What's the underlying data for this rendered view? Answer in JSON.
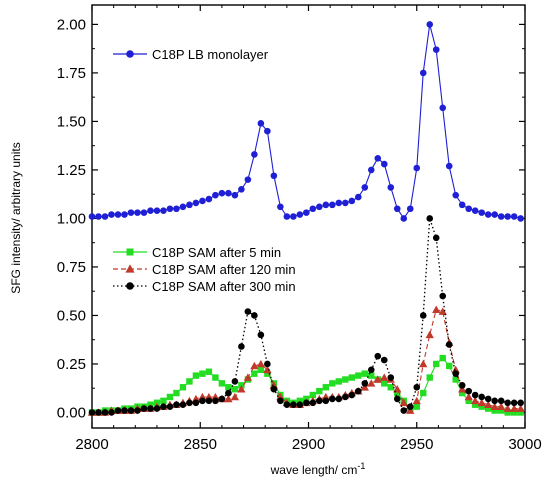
{
  "chart_data": {
    "type": "line",
    "title": "",
    "xlabel": "wave length/ cm",
    "xlabel_sup": "-1",
    "ylabel": "SFG intensity/ arbitrary units",
    "xlim": [
      2800,
      3000
    ],
    "ylim": [
      -0.08,
      2.1
    ],
    "xticks": [
      2800,
      2850,
      2900,
      2950,
      3000
    ],
    "yticks": [
      0.0,
      0.25,
      0.5,
      0.75,
      1.0,
      1.25,
      1.5,
      1.75,
      2.0
    ],
    "xtick_labels": [
      "2800",
      "2850",
      "2900",
      "2950",
      "3000"
    ],
    "ytick_labels": [
      "0.00",
      "0.25",
      "0.50",
      "0.75",
      "1.00",
      "1.25",
      "1.50",
      "1.75",
      "2.00"
    ],
    "grid": false,
    "series": [
      {
        "name": "C18P LB monolayer",
        "color": "#1f1fd6",
        "marker": "circle",
        "line_style": "solid",
        "legend_group": "top",
        "x": [
          2800,
          2803,
          2806,
          2809,
          2812,
          2815,
          2818,
          2821,
          2824,
          2827,
          2830,
          2833,
          2836,
          2839,
          2842,
          2845,
          2848,
          2851,
          2854,
          2857,
          2860,
          2863,
          2866,
          2869,
          2872,
          2875,
          2878,
          2881,
          2884,
          2887,
          2890,
          2893,
          2896,
          2899,
          2902,
          2905,
          2908,
          2911,
          2914,
          2917,
          2920,
          2923,
          2926,
          2929,
          2932,
          2935,
          2938,
          2941,
          2944,
          2947,
          2950,
          2953,
          2956,
          2959,
          2962,
          2965,
          2968,
          2971,
          2974,
          2977,
          2980,
          2983,
          2986,
          2989,
          2992,
          2995,
          2998
        ],
        "y": [
          1.01,
          1.01,
          1.01,
          1.02,
          1.02,
          1.02,
          1.03,
          1.03,
          1.03,
          1.04,
          1.04,
          1.04,
          1.05,
          1.05,
          1.06,
          1.07,
          1.08,
          1.09,
          1.1,
          1.12,
          1.13,
          1.13,
          1.12,
          1.15,
          1.2,
          1.33,
          1.49,
          1.45,
          1.22,
          1.06,
          1.01,
          1.01,
          1.02,
          1.03,
          1.05,
          1.06,
          1.07,
          1.07,
          1.08,
          1.08,
          1.09,
          1.11,
          1.16,
          1.25,
          1.31,
          1.28,
          1.16,
          1.05,
          1.0,
          1.05,
          1.26,
          1.75,
          2.0,
          1.87,
          1.57,
          1.27,
          1.12,
          1.07,
          1.05,
          1.04,
          1.03,
          1.02,
          1.02,
          1.01,
          1.01,
          1.01,
          1.0
        ]
      },
      {
        "name": "C18P SAM after 5 min",
        "color": "#22dd22",
        "marker": "square",
        "line_style": "solid",
        "legend_group": "bottom",
        "x": [
          2800,
          2803,
          2806,
          2809,
          2812,
          2815,
          2818,
          2821,
          2824,
          2827,
          2830,
          2833,
          2836,
          2839,
          2842,
          2845,
          2848,
          2851,
          2854,
          2857,
          2860,
          2863,
          2866,
          2869,
          2872,
          2875,
          2878,
          2881,
          2884,
          2887,
          2890,
          2893,
          2896,
          2899,
          2902,
          2905,
          2908,
          2911,
          2914,
          2917,
          2920,
          2923,
          2926,
          2929,
          2932,
          2935,
          2938,
          2941,
          2944,
          2947,
          2950,
          2953,
          2956,
          2959,
          2962,
          2965,
          2968,
          2971,
          2974,
          2977,
          2980,
          2983,
          2986,
          2989,
          2992,
          2995,
          2998
        ],
        "y": [
          0.0,
          0.0,
          0.01,
          0.01,
          0.01,
          0.02,
          0.02,
          0.03,
          0.03,
          0.04,
          0.05,
          0.06,
          0.08,
          0.1,
          0.13,
          0.16,
          0.19,
          0.2,
          0.21,
          0.18,
          0.15,
          0.13,
          0.12,
          0.14,
          0.17,
          0.2,
          0.22,
          0.2,
          0.15,
          0.09,
          0.06,
          0.05,
          0.06,
          0.07,
          0.09,
          0.11,
          0.13,
          0.15,
          0.16,
          0.17,
          0.18,
          0.19,
          0.2,
          0.19,
          0.17,
          0.15,
          0.13,
          0.1,
          0.06,
          0.02,
          0.03,
          0.1,
          0.18,
          0.25,
          0.28,
          0.24,
          0.17,
          0.1,
          0.06,
          0.04,
          0.03,
          0.02,
          0.01,
          0.01,
          0.0,
          0.0,
          0.0
        ]
      },
      {
        "name": "C18P SAM after 120 min",
        "color": "#c0392b",
        "marker": "triangle",
        "line_style": "dashed",
        "legend_group": "bottom",
        "x": [
          2800,
          2803,
          2806,
          2809,
          2812,
          2815,
          2818,
          2821,
          2824,
          2827,
          2830,
          2833,
          2836,
          2839,
          2842,
          2845,
          2848,
          2851,
          2854,
          2857,
          2860,
          2863,
          2866,
          2869,
          2872,
          2875,
          2878,
          2881,
          2884,
          2887,
          2890,
          2893,
          2896,
          2899,
          2902,
          2905,
          2908,
          2911,
          2914,
          2917,
          2920,
          2923,
          2926,
          2929,
          2932,
          2935,
          2938,
          2941,
          2944,
          2947,
          2950,
          2953,
          2956,
          2959,
          2962,
          2965,
          2968,
          2971,
          2974,
          2977,
          2980,
          2983,
          2986,
          2989,
          2992,
          2995,
          2998
        ],
        "y": [
          0.0,
          0.0,
          0.0,
          0.01,
          0.01,
          0.01,
          0.01,
          0.02,
          0.02,
          0.02,
          0.03,
          0.03,
          0.04,
          0.04,
          0.05,
          0.06,
          0.07,
          0.08,
          0.08,
          0.08,
          0.07,
          0.07,
          0.08,
          0.12,
          0.18,
          0.24,
          0.25,
          0.22,
          0.14,
          0.08,
          0.05,
          0.04,
          0.04,
          0.05,
          0.06,
          0.07,
          0.08,
          0.08,
          0.08,
          0.09,
          0.1,
          0.11,
          0.13,
          0.15,
          0.17,
          0.18,
          0.17,
          0.12,
          0.05,
          0.01,
          0.06,
          0.25,
          0.4,
          0.53,
          0.52,
          0.36,
          0.22,
          0.12,
          0.08,
          0.06,
          0.05,
          0.04,
          0.03,
          0.03,
          0.02,
          0.02,
          0.02
        ]
      },
      {
        "name": "C18P SAM after 300 min",
        "color": "#000000",
        "marker": "circle",
        "line_style": "dotted",
        "legend_group": "bottom",
        "x": [
          2800,
          2803,
          2806,
          2809,
          2812,
          2815,
          2818,
          2821,
          2824,
          2827,
          2830,
          2833,
          2836,
          2839,
          2842,
          2845,
          2848,
          2851,
          2854,
          2857,
          2860,
          2863,
          2866,
          2869,
          2872,
          2875,
          2878,
          2881,
          2884,
          2887,
          2890,
          2893,
          2896,
          2899,
          2902,
          2905,
          2908,
          2911,
          2914,
          2917,
          2920,
          2923,
          2926,
          2929,
          2932,
          2935,
          2938,
          2941,
          2944,
          2947,
          2950,
          2953,
          2956,
          2959,
          2962,
          2965,
          2968,
          2971,
          2974,
          2977,
          2980,
          2983,
          2986,
          2989,
          2992,
          2995,
          2998
        ],
        "y": [
          0.0,
          0.0,
          0.0,
          0.0,
          0.01,
          0.01,
          0.01,
          0.01,
          0.02,
          0.02,
          0.02,
          0.03,
          0.03,
          0.04,
          0.04,
          0.05,
          0.05,
          0.06,
          0.06,
          0.06,
          0.07,
          0.1,
          0.16,
          0.34,
          0.52,
          0.5,
          0.4,
          0.25,
          0.12,
          0.06,
          0.04,
          0.04,
          0.04,
          0.05,
          0.05,
          0.06,
          0.06,
          0.07,
          0.07,
          0.08,
          0.09,
          0.11,
          0.15,
          0.22,
          0.29,
          0.27,
          0.18,
          0.07,
          0.01,
          0.03,
          0.13,
          0.5,
          1.0,
          0.9,
          0.6,
          0.35,
          0.2,
          0.14,
          0.11,
          0.09,
          0.08,
          0.07,
          0.06,
          0.06,
          0.05,
          0.05,
          0.05
        ]
      }
    ]
  }
}
